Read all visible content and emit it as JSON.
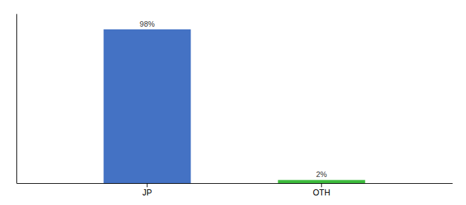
{
  "chart_data": {
    "type": "bar",
    "categories": [
      "JP",
      "OTH"
    ],
    "values": [
      98,
      2
    ],
    "value_labels": [
      "98%",
      "2%"
    ],
    "data_labels": true,
    "colors": [
      "#4472c4",
      "#3dbb3d"
    ],
    "ylim": [
      0,
      108
    ],
    "tick_labels": "x",
    "grid": false
  }
}
